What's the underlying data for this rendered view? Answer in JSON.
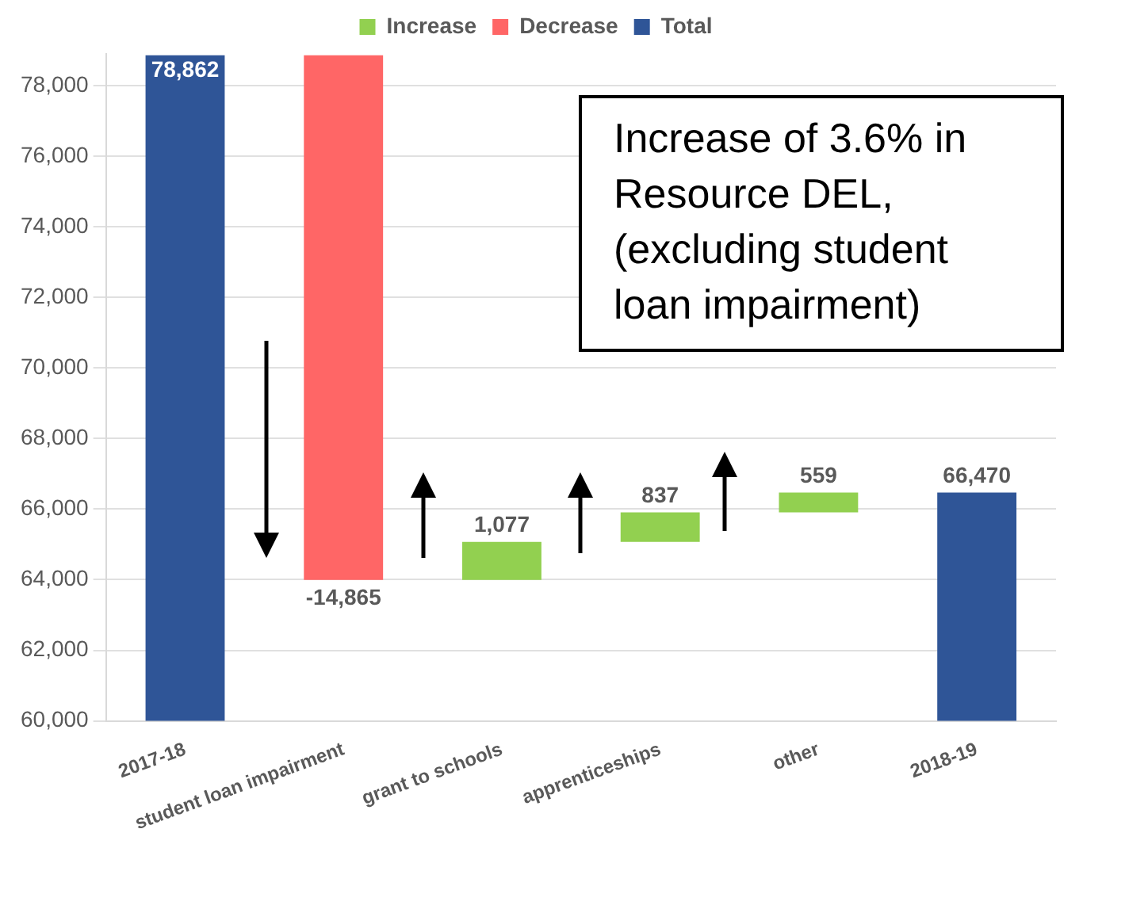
{
  "chart_data": {
    "type": "bar",
    "categories": [
      "2017-18",
      "student loan impairment",
      "grant to schools",
      "apprenticeships",
      "other",
      "2018-19"
    ],
    "series": [
      {
        "name": "Increase",
        "color": "#92d050",
        "base": [
          null,
          null,
          63997,
          65074,
          65911,
          null
        ],
        "values": [
          null,
          null,
          1077,
          837,
          559,
          null
        ],
        "value_labels": [
          null,
          null,
          "1,077",
          "837",
          "559",
          null
        ]
      },
      {
        "name": "Decrease",
        "color": "#ff6666",
        "base": [
          null,
          78862,
          null,
          null,
          null,
          null
        ],
        "values": [
          null,
          -14865,
          null,
          null,
          null,
          null
        ],
        "value_labels": [
          null,
          "-14,865",
          null,
          null,
          null,
          null
        ]
      },
      {
        "name": "Total",
        "color": "#2f5597",
        "base": [
          0,
          null,
          null,
          null,
          null,
          0
        ],
        "values": [
          78862,
          null,
          null,
          null,
          null,
          66470
        ],
        "value_labels": [
          "78,862",
          null,
          null,
          null,
          null,
          "66,470"
        ]
      }
    ],
    "ylim": [
      60000,
      78900
    ],
    "yticks": [
      {
        "value": 60000,
        "label": "60,000"
      },
      {
        "value": 62000,
        "label": "62,000"
      },
      {
        "value": 64000,
        "label": "64,000"
      },
      {
        "value": 66000,
        "label": "66,000"
      },
      {
        "value": 68000,
        "label": "68,000"
      },
      {
        "value": 70000,
        "label": "70,000"
      },
      {
        "value": 72000,
        "label": "72,000"
      },
      {
        "value": 74000,
        "label": "74,000"
      },
      {
        "value": 76000,
        "label": "76,000"
      },
      {
        "value": 78000,
        "label": "78,000"
      }
    ],
    "grid": "y",
    "legend": "top",
    "annotations": [
      "Increase of 3.6% in Resource DEL, (excluding student loan impairment)"
    ]
  }
}
